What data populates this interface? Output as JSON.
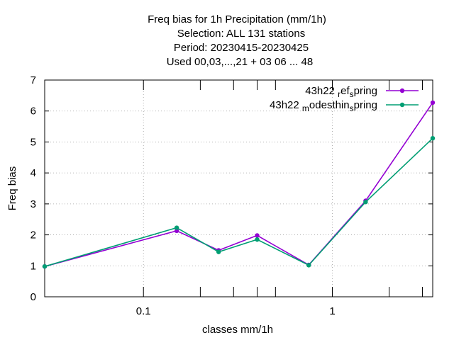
{
  "chart_data": {
    "type": "line",
    "title_lines": [
      "Freq bias  for 1h Precipitation (mm/1h)",
      "Selection: ALL    131 stations",
      "Period: 20230415-20230425",
      "Used  00,03,...,21  + 03 06 ... 48"
    ],
    "xlabel": "classes mm/1h",
    "ylabel": "Freq bias",
    "x_scale": "log",
    "xlim": [
      0.03,
      3.4
    ],
    "ylim": [
      0,
      7
    ],
    "x_ticks": [
      {
        "value": 0.1,
        "label": "0.1"
      },
      {
        "value": 1,
        "label": "1"
      }
    ],
    "x_minor_ticks": [
      0.2,
      0.3,
      0.4,
      0.5,
      2,
      3
    ],
    "y_ticks": [
      {
        "value": 0,
        "label": "0"
      },
      {
        "value": 1,
        "label": "1"
      },
      {
        "value": 2,
        "label": "2"
      },
      {
        "value": 3,
        "label": "3"
      },
      {
        "value": 4,
        "label": "4"
      },
      {
        "value": 5,
        "label": "5"
      },
      {
        "value": 6,
        "label": "6"
      },
      {
        "value": 7,
        "label": "7"
      }
    ],
    "grid": true,
    "legend_position": "top-right",
    "series": [
      {
        "name": "43h22_ref_spring",
        "legend_parts": [
          "43h22 ",
          "r",
          "ef",
          "s",
          "pring"
        ],
        "color": "#9400d3",
        "x": [
          0.03,
          0.15,
          0.25,
          0.4,
          0.75,
          1.5,
          3.4
        ],
        "values": [
          0.98,
          2.13,
          1.5,
          1.98,
          1.03,
          3.1,
          6.27
        ]
      },
      {
        "name": "43h22_modesthin_spring",
        "legend_parts": [
          "43h22 ",
          "m",
          "odesthin",
          "s",
          "pring"
        ],
        "color": "#009e73",
        "x": [
          0.03,
          0.15,
          0.25,
          0.4,
          0.75,
          1.5,
          3.4
        ],
        "values": [
          0.98,
          2.23,
          1.45,
          1.85,
          1.02,
          3.06,
          5.12
        ]
      }
    ]
  }
}
